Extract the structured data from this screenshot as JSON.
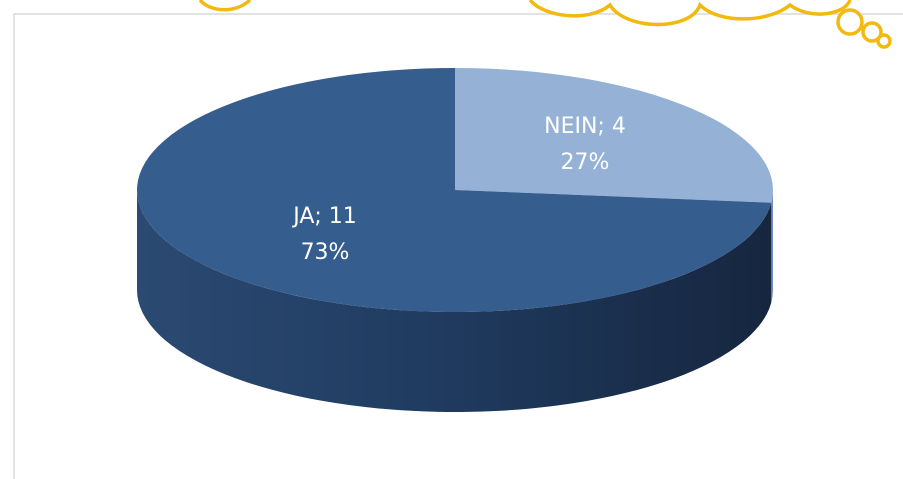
{
  "chart_data": {
    "type": "pie3d",
    "values": [
      4,
      11
    ],
    "value_labels": [
      "NEIN; 4",
      "JA; 11"
    ],
    "percent_labels": [
      "27%",
      "73%"
    ],
    "colors": [
      "#95b1d5",
      "#355d8e"
    ]
  }
}
